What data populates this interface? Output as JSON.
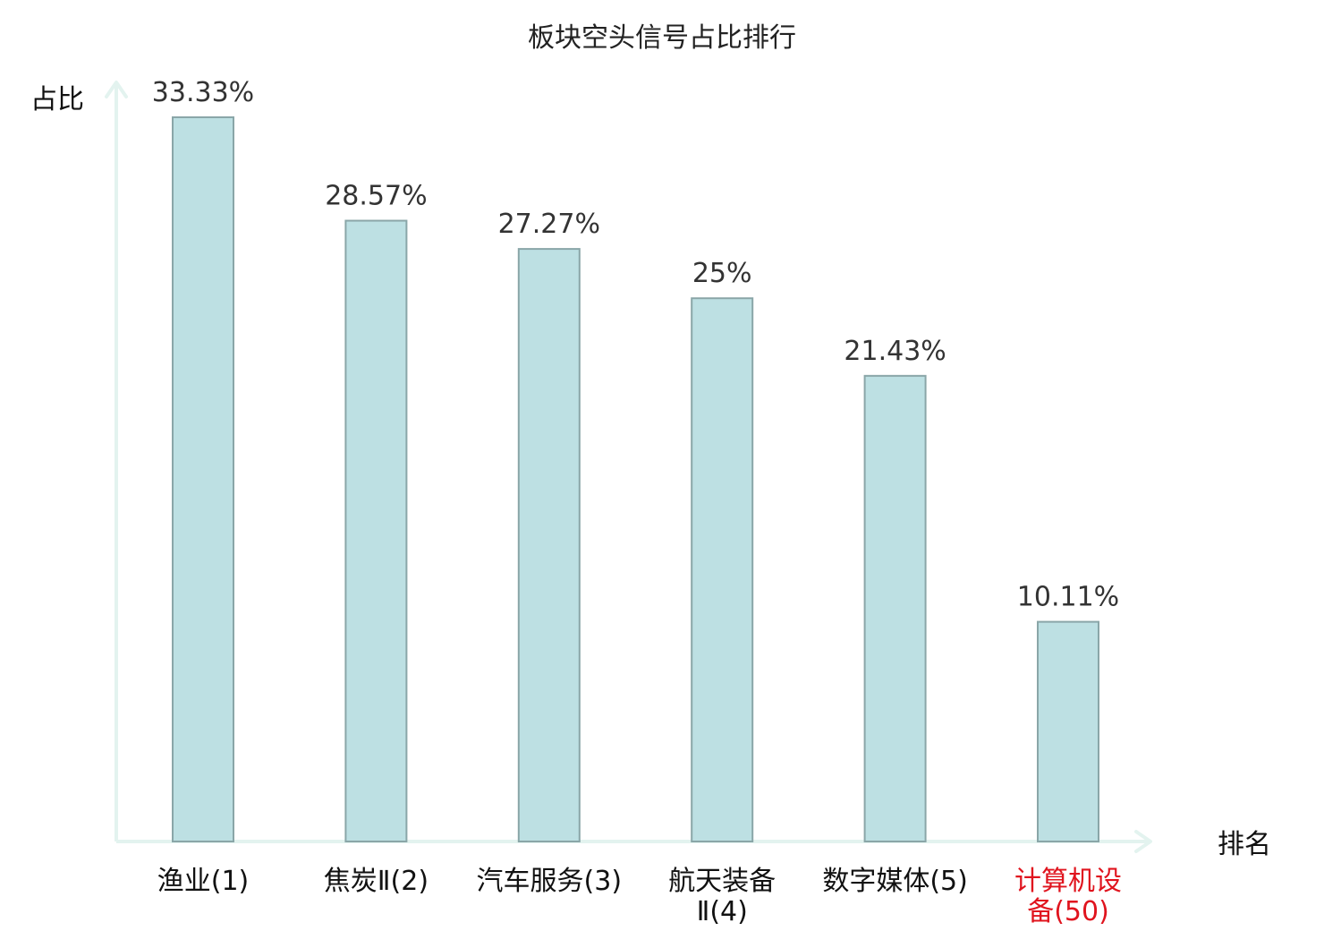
{
  "chart_data": {
    "type": "bar",
    "title": "板块空头信号占比排行",
    "ylabel": "占比",
    "xlabel": "排名",
    "categories": [
      "渔业(1)",
      "焦炭Ⅱ(2)",
      "汽车服务(3)",
      "航天装备Ⅱ(4)",
      "数字媒体(5)",
      "计算机设备(50)"
    ],
    "category_lines": [
      [
        "渔业(1)"
      ],
      [
        "焦炭Ⅱ(2)"
      ],
      [
        "汽车服务(3)"
      ],
      [
        "航天装备",
        "Ⅱ(4)"
      ],
      [
        "数字媒体(5)"
      ],
      [
        "计算机设",
        "备(50)"
      ]
    ],
    "values": [
      33.33,
      28.57,
      27.27,
      25,
      21.43,
      10.11
    ],
    "value_labels": [
      "33.33%",
      "28.57%",
      "27.27%",
      "25%",
      "21.43%",
      "10.11%"
    ],
    "highlight_index": 5,
    "ylim": [
      0,
      35
    ],
    "grid": false,
    "colors": {
      "bar_fill": "#bde0e3",
      "bar_stroke": "#8aa6a8",
      "axis": "#e3f3ef",
      "highlight_text": "#e0141e",
      "normal_text": "#111111"
    }
  }
}
